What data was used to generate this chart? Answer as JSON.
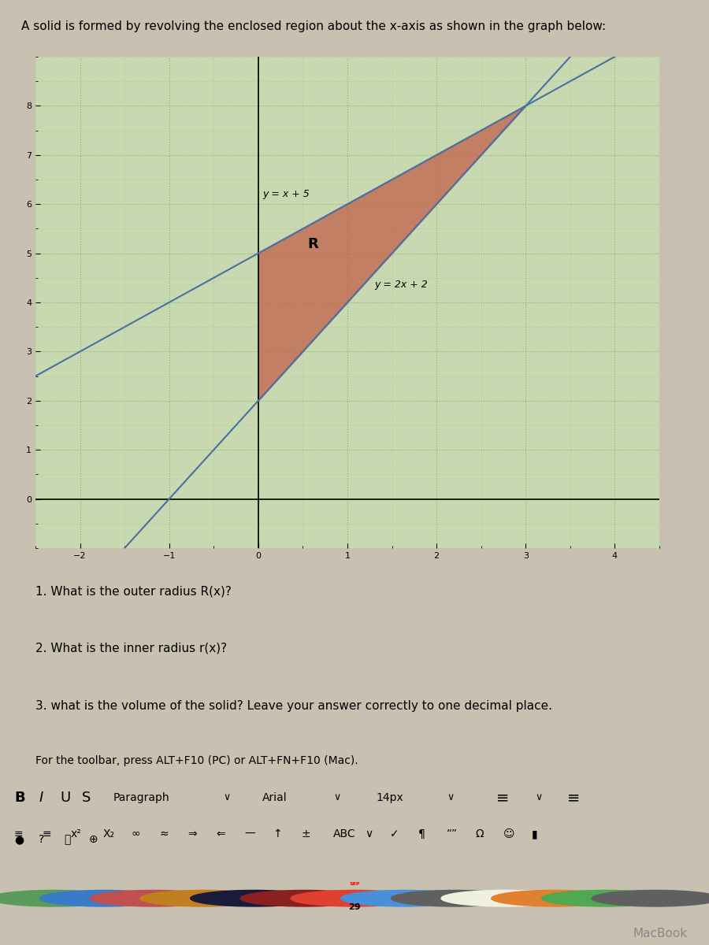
{
  "title": "A solid is formed by revolving the enclosed region about the x-axis as shown in the graph below:",
  "line1_label": "y = x + 5",
  "line2_label": "y = 2x + 2",
  "region_label": "R",
  "intersection_x": 3.0,
  "intersection_y": 8.0,
  "left_bound_x": 0.0,
  "xlim": [
    -2.5,
    4.5
  ],
  "ylim": [
    -1.0,
    9.0
  ],
  "xticks": [
    -2,
    -1,
    0,
    1,
    2,
    3,
    4
  ],
  "yticks": [
    0,
    1,
    2,
    3,
    4,
    5,
    6,
    7,
    8
  ],
  "fill_color": "#c0614a",
  "fill_alpha": 0.75,
  "line1_color": "#4a6fa5",
  "line2_color": "#4a6fa5",
  "grid_color_major": "#7cba5a",
  "grid_color_minor": "#7cba5a",
  "plot_bg_color": "#c8d8b0",
  "questions": [
    "1. What is the outer radius R(x)?",
    "2. What is the inner radius r(x)?",
    "3. what is the volume of the solid? Leave your answer correctly to one decimal place."
  ],
  "toolbar_text": "For the toolbar, press ALT+F10 (PC) or ALT+FN+F10 (Mac).",
  "outer_bg": "#c8c0b0",
  "questions_bg": "#e0d8d0",
  "toolbar_bg": "#d0c8c0",
  "dock_bg": "#1a1a1a"
}
